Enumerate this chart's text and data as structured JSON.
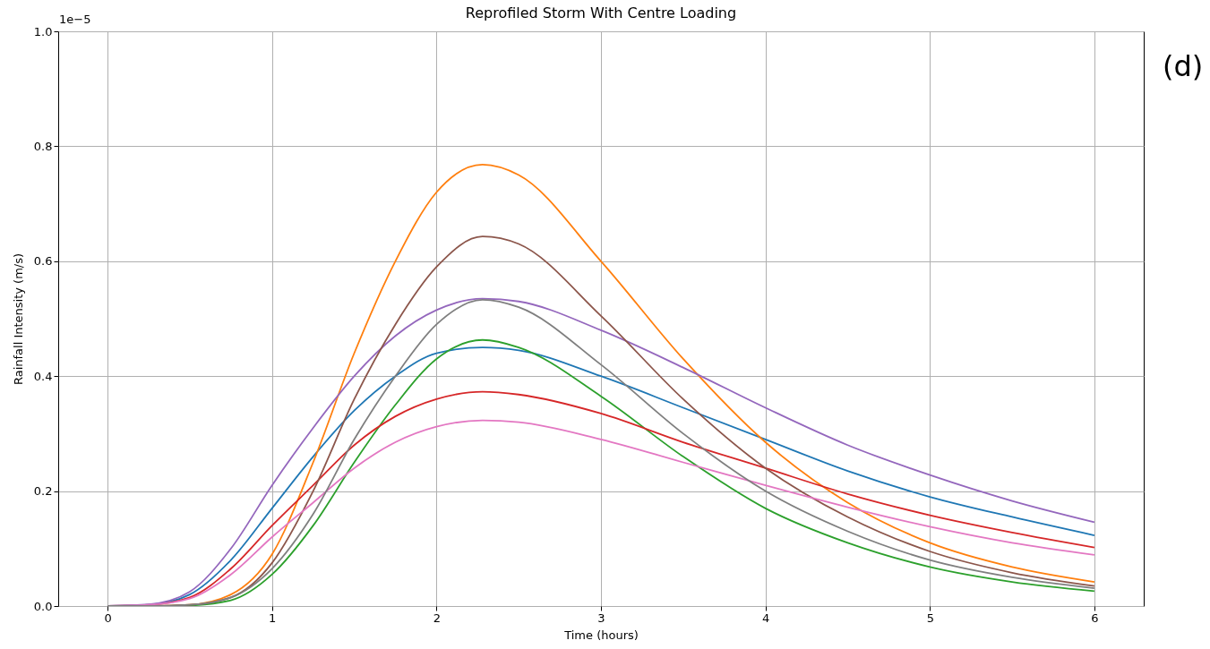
{
  "chart_data": {
    "type": "line",
    "title": "Reprofiled Storm With Centre Loading",
    "xlabel": "Time (hours)",
    "ylabel": "Rainfall Intensity (m/s)",
    "annotations": [
      "1e−5",
      "(d)"
    ],
    "x": [
      0,
      0.25,
      0.5,
      0.75,
      1,
      1.25,
      1.5,
      1.75,
      2,
      2.28,
      2.5,
      3,
      3.5,
      4,
      4.5,
      5,
      5.5,
      6
    ],
    "series": [
      {
        "color": "#1f77b4",
        "values": [
          0,
          0.002,
          0.02,
          0.08,
          0.17,
          0.26,
          0.34,
          0.4,
          0.44,
          0.45,
          0.445,
          0.4,
          0.345,
          0.29,
          0.235,
          0.19,
          0.155,
          0.123
        ]
      },
      {
        "color": "#ff7f0e",
        "values": [
          0,
          0,
          0.002,
          0.02,
          0.09,
          0.25,
          0.44,
          0.6,
          0.72,
          0.768,
          0.75,
          0.6,
          0.43,
          0.285,
          0.18,
          0.11,
          0.068,
          0.042
        ]
      },
      {
        "color": "#2ca02c",
        "values": [
          0,
          0,
          0.001,
          0.01,
          0.055,
          0.14,
          0.25,
          0.35,
          0.43,
          0.463,
          0.45,
          0.365,
          0.26,
          0.17,
          0.11,
          0.068,
          0.042,
          0.026
        ]
      },
      {
        "color": "#d62728",
        "values": [
          0,
          0.002,
          0.015,
          0.065,
          0.14,
          0.21,
          0.28,
          0.33,
          0.36,
          0.373,
          0.368,
          0.335,
          0.285,
          0.24,
          0.195,
          0.158,
          0.128,
          0.102
        ]
      },
      {
        "color": "#9467bd",
        "values": [
          0,
          0.003,
          0.025,
          0.1,
          0.21,
          0.31,
          0.4,
          0.47,
          0.515,
          0.535,
          0.53,
          0.48,
          0.415,
          0.345,
          0.28,
          0.228,
          0.183,
          0.146
        ]
      },
      {
        "color": "#8c564b",
        "values": [
          0,
          0,
          0.002,
          0.015,
          0.075,
          0.2,
          0.36,
          0.49,
          0.59,
          0.643,
          0.63,
          0.505,
          0.36,
          0.24,
          0.155,
          0.095,
          0.058,
          0.035
        ]
      },
      {
        "color": "#e377c2",
        "values": [
          0,
          0.002,
          0.013,
          0.055,
          0.12,
          0.18,
          0.24,
          0.285,
          0.312,
          0.323,
          0.32,
          0.29,
          0.25,
          0.21,
          0.172,
          0.138,
          0.11,
          0.089
        ]
      },
      {
        "color": "#7f7f7f",
        "values": [
          0,
          0,
          0.002,
          0.015,
          0.065,
          0.16,
          0.29,
          0.4,
          0.49,
          0.533,
          0.52,
          0.42,
          0.3,
          0.2,
          0.13,
          0.08,
          0.05,
          0.031
        ]
      }
    ],
    "xlim": [
      -0.3,
      6.3
    ],
    "xticks": [
      0,
      1,
      2,
      3,
      4,
      5,
      6
    ],
    "ylim": [
      0,
      1
    ],
    "yticks": [
      {
        "value": 0,
        "label": "0.0"
      },
      0.2,
      0.4,
      0.6,
      0.8,
      {
        "value": 1,
        "label": "1.0"
      }
    ],
    "grid": true,
    "line_style": "solid"
  }
}
